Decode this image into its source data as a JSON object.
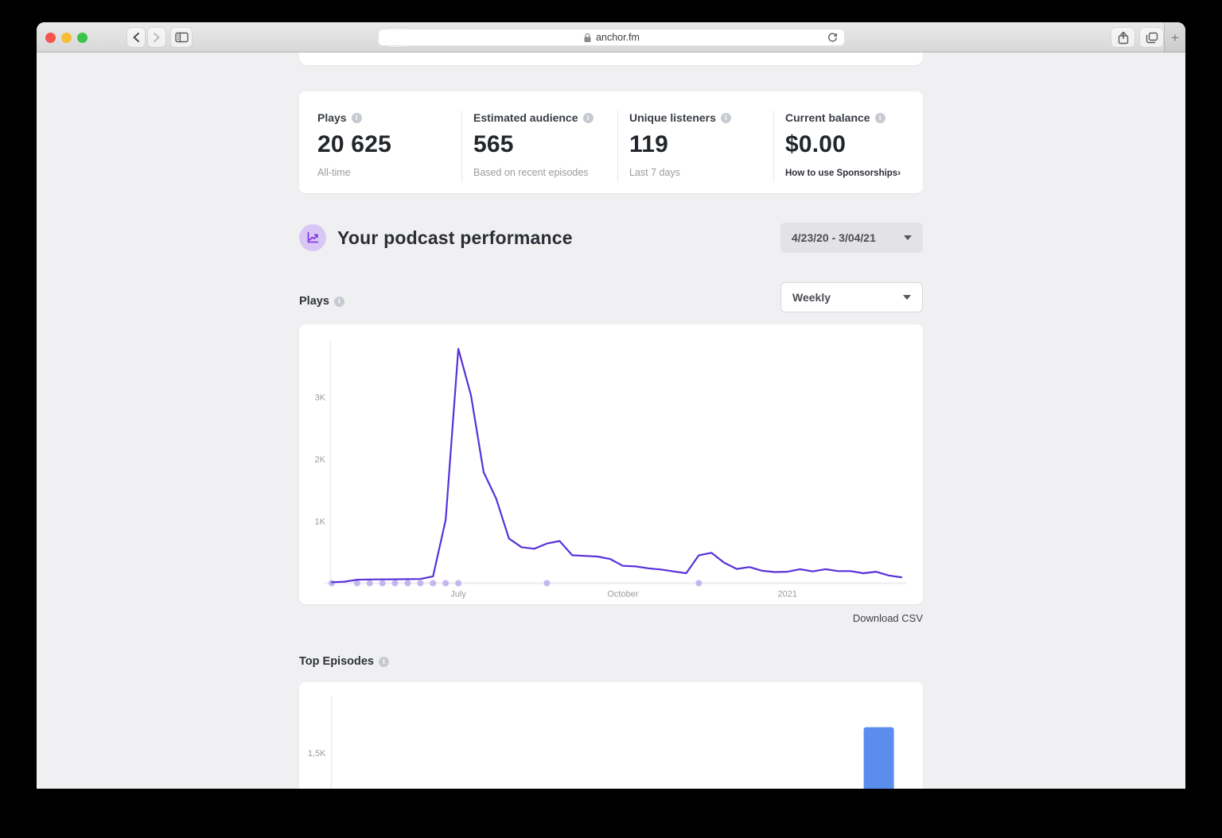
{
  "theme": {
    "accent_purple": "#5731d9",
    "marker_lavender": "#c7b6ee",
    "bar_blue": "#5b8def",
    "icon_circle_bg": "#d8c7f4",
    "icon_glyph_purple": "#7b2fe0"
  },
  "browser": {
    "address": "anchor.fm",
    "new_tab_glyph": "+"
  },
  "stats": {
    "cards": [
      {
        "label": "Plays",
        "value": "20 625",
        "sub": "All-time"
      },
      {
        "label": "Estimated audience",
        "value": "565",
        "sub": "Based on recent episodes"
      },
      {
        "label": "Unique listeners",
        "value": "119",
        "sub": "Last 7 days"
      },
      {
        "label": "Current balance",
        "value": "$0.00",
        "link": "How to use Sponsorships",
        "link_chevron": "›"
      }
    ]
  },
  "performance": {
    "title": "Your podcast performance",
    "date_range": "4/23/20 - 3/04/21"
  },
  "plays_section": {
    "label": "Plays",
    "interval": "Weekly",
    "download_label": "Download CSV"
  },
  "episodes_section": {
    "label": "Top Episodes"
  },
  "chart_data": [
    {
      "type": "line",
      "title": "Plays",
      "interval": "Weekly",
      "x_start": "4/23/20",
      "x_end": "3/04/21",
      "ylim": [
        0,
        3880
      ],
      "y_ticks": [
        {
          "label": "1K",
          "value": 1000
        },
        {
          "label": "2K",
          "value": 2000
        },
        {
          "label": "3K",
          "value": 3000
        }
      ],
      "x_tick_labels": [
        {
          "label": "July",
          "week": 10
        },
        {
          "label": "October",
          "week": 23
        },
        {
          "label": "2021",
          "week": 36
        }
      ],
      "values": [
        15,
        25,
        55,
        60,
        62,
        63,
        65,
        68,
        110,
        1020,
        3780,
        3030,
        1790,
        1360,
        720,
        580,
        555,
        640,
        680,
        450,
        440,
        430,
        390,
        280,
        270,
        240,
        220,
        190,
        160,
        450,
        490,
        330,
        230,
        260,
        200,
        180,
        185,
        225,
        190,
        225,
        195,
        195,
        160,
        185,
        125,
        95
      ],
      "episode_marker_weeks": [
        0,
        2,
        3,
        4,
        5,
        6,
        7,
        8,
        9,
        10,
        17,
        29
      ],
      "line_color": "#5731d9",
      "marker_color": "#c7b6ee"
    },
    {
      "type": "bar",
      "title": "Top Episodes",
      "y_ticks": [
        {
          "label": "1,5K",
          "value": 1500
        }
      ],
      "bars": [
        {
          "value": 1900,
          "x_frac": 0.9
        }
      ],
      "bar_color": "#5b8def"
    }
  ]
}
